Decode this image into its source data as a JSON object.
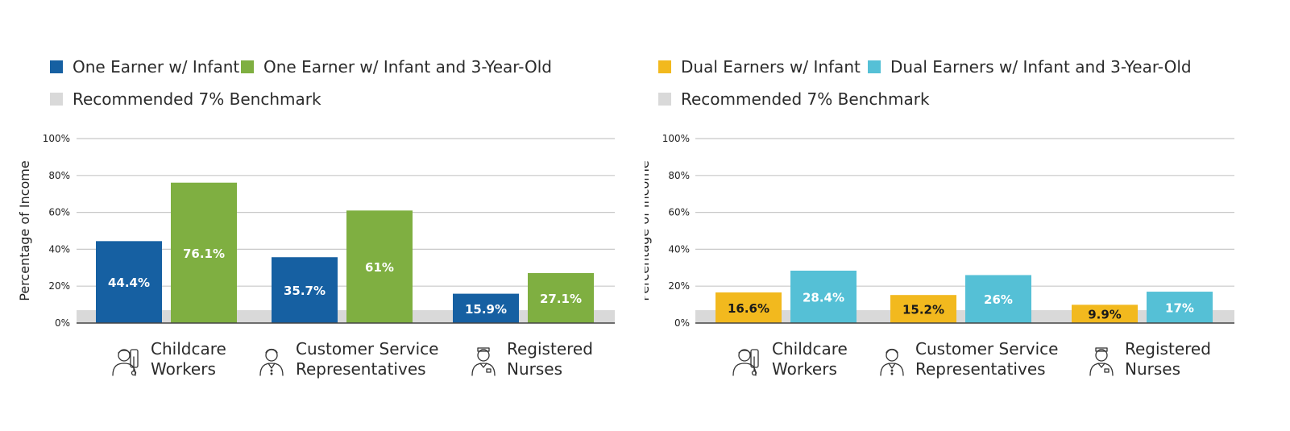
{
  "chart_data": [
    {
      "type": "bar",
      "ylabel": "Percentage of Income",
      "ylim": [
        0,
        100
      ],
      "yticks": [
        "0%",
        "20%",
        "40%",
        "60%",
        "80%",
        "100%"
      ],
      "grid": true,
      "categories": [
        {
          "lines": [
            "Childcare",
            "Workers"
          ],
          "icon": "childcare-worker-icon"
        },
        {
          "lines": [
            "Customer Service",
            "Representatives"
          ],
          "icon": "customer-service-icon"
        },
        {
          "lines": [
            "Registered",
            "Nurses"
          ],
          "icon": "nurse-icon"
        }
      ],
      "series": [
        {
          "name": "One Earner w/ Infant",
          "color": "#1660A2",
          "values": [
            44.4,
            35.7,
            15.9
          ],
          "labels": [
            "44.4%",
            "35.7%",
            "15.9%"
          ],
          "label_color": "#ffffff"
        },
        {
          "name": "One Earner w/ Infant and 3-Year-Old",
          "color": "#7FAF41",
          "values": [
            76.1,
            61,
            27.1
          ],
          "labels": [
            "76.1%",
            "61%",
            "27.1%"
          ],
          "label_color": "#ffffff"
        }
      ],
      "benchmark": {
        "name": "Recommended 7% Benchmark",
        "value": 7,
        "color": "#D9D9D9"
      }
    },
    {
      "type": "bar",
      "ylabel": "Percentage of Income",
      "ylim": [
        0,
        100
      ],
      "yticks": [
        "0%",
        "20%",
        "40%",
        "60%",
        "80%",
        "100%"
      ],
      "grid": true,
      "categories": [
        {
          "lines": [
            "Childcare",
            "Workers"
          ],
          "icon": "childcare-worker-icon"
        },
        {
          "lines": [
            "Customer Service",
            "Representatives"
          ],
          "icon": "customer-service-icon"
        },
        {
          "lines": [
            "Registered",
            "Nurses"
          ],
          "icon": "nurse-icon"
        }
      ],
      "series": [
        {
          "name": "Dual Earners w/ Infant",
          "color": "#F2B91E",
          "values": [
            16.6,
            15.2,
            9.9
          ],
          "labels": [
            "16.6%",
            "15.2%",
            "9.9%"
          ],
          "label_color": "#1a1a1a"
        },
        {
          "name": "Dual Earners w/ Infant and 3-Year-Old",
          "color": "#55C0D6",
          "values": [
            28.4,
            26,
            17
          ],
          "labels": [
            "28.4%",
            "26%",
            "17%"
          ],
          "label_color": "#ffffff"
        }
      ],
      "benchmark": {
        "name": "Recommended 7% Benchmark",
        "value": 7,
        "color": "#D9D9D9"
      }
    }
  ]
}
